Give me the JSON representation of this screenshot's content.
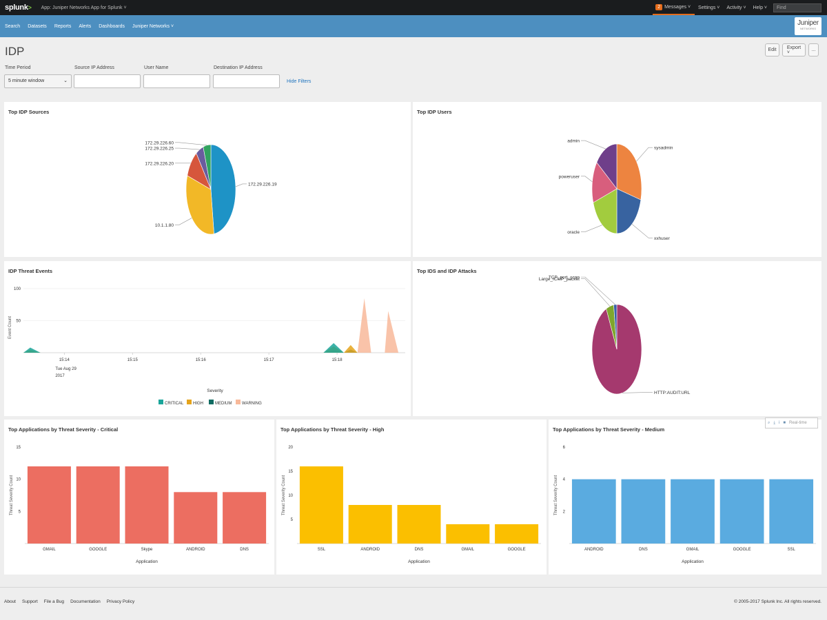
{
  "topbar": {
    "logo": "splunk",
    "logo_suffix": ">",
    "app_name": "App: Juniper Networks App for Splunk ˅",
    "message_count": "2",
    "messages": "Messages ˅",
    "settings": "Settings ˅",
    "activity": "Activity ˅",
    "help": "Help ˅",
    "find_placeholder": "Find"
  },
  "nav": {
    "items": [
      "Search",
      "Datasets",
      "Reports",
      "Alerts",
      "Dashboards",
      "Juniper Networks ˅"
    ],
    "brand_logo": "Juniper",
    "brand_sub": "NETWORKS"
  },
  "page": {
    "title": "IDP",
    "edit": "Edit",
    "export": "Export ˅",
    "more": "..."
  },
  "filters": {
    "time_period_label": "Time Period",
    "time_period_value": "5 minute window",
    "source_ip_label": "Source IP Address",
    "user_name_label": "User Name",
    "dest_ip_label": "Destination IP Address",
    "hide_filters": "Hide Filters"
  },
  "panels": {
    "top_idp_sources": {
      "title": "Top IDP Sources",
      "chart_data": {
        "type": "pie",
        "labels": [
          "172.29.226.19",
          "10.1.1.80",
          "172.29.226.20",
          "172.29.226.25",
          "172.29.226.60"
        ],
        "values": [
          48,
          32,
          10,
          5,
          5
        ],
        "colors": [
          "#1e93c6",
          "#f2b827",
          "#d6563c",
          "#6a5c9e",
          "#31a35f"
        ]
      }
    },
    "top_idp_users": {
      "title": "Top IDP Users",
      "chart_data": {
        "type": "pie",
        "labels": [
          "sysadmin",
          "xxhuser",
          "oracle",
          "poweruser",
          "admin"
        ],
        "values": [
          29,
          21,
          20,
          15,
          15
        ],
        "colors": [
          "#ed8440",
          "#3863a0",
          "#a2cc3e",
          "#d85e7d",
          "#6f3f8a"
        ]
      }
    },
    "idp_threat_events": {
      "title": "IDP Threat Events",
      "chart_data": {
        "type": "area",
        "ylabel": "Event Count",
        "xlabel": "Severity",
        "ylim": [
          0,
          100
        ],
        "yticks": [
          50,
          100
        ],
        "xticks": [
          "15:14",
          "15:15",
          "15:16",
          "15:17",
          "15:18"
        ],
        "xdate_line1": "Tue Aug 29",
        "xdate_line2": "2017",
        "x_minutes": [
          0,
          0.1,
          0.25,
          0.4,
          0.6,
          1.6,
          2.6,
          3.6,
          4.4,
          4.55,
          4.7,
          4.8,
          4.9,
          5.0,
          5.1,
          5.2,
          5.3,
          5.35,
          5.5,
          5.6
        ],
        "series": [
          {
            "name": "CRITICAL",
            "color": "#1aa59a",
            "values": [
              0,
              8,
              0,
              0,
              0,
              0,
              0,
              0,
              0,
              15,
              0,
              0,
              0,
              0,
              0,
              0,
              0,
              0,
              0,
              0
            ]
          },
          {
            "name": "HIGH",
            "color": "#e5a41c",
            "values": [
              0,
              5,
              0,
              0,
              0,
              0,
              0,
              0,
              0,
              10,
              0,
              12,
              0,
              0,
              0,
              0,
              0,
              0,
              0,
              0
            ]
          },
          {
            "name": "MEDIUM",
            "color": "#0f6b62",
            "values": [
              0,
              2,
              0,
              0,
              0,
              0,
              0,
              0,
              0,
              4,
              0,
              5,
              0,
              0,
              0,
              0,
              0,
              0,
              0,
              0
            ]
          },
          {
            "name": "WARNING",
            "color": "#f8b99a",
            "values": [
              0,
              0,
              0,
              0,
              0,
              0,
              0,
              0,
              0,
              0,
              0,
              0,
              0,
              85,
              0,
              0,
              0,
              65,
              0,
              0
            ]
          }
        ]
      }
    },
    "top_ids_idp_attacks": {
      "title": "Top IDS and IDP Attacks",
      "chart_data": {
        "type": "pie",
        "labels": [
          "HTTP:AUDIT:URL",
          "Large_ICMP_packet",
          "TCP_port_scan"
        ],
        "values": [
          93,
          5,
          2
        ],
        "colors": [
          "#a5396e",
          "#7fa62c",
          "#3a5fa8"
        ]
      }
    },
    "critical": {
      "title": "Top Applications by Threat Severity - Critical",
      "chart_data": {
        "type": "bar",
        "categories": [
          "GMAIL",
          "GOOGLE",
          "Skype",
          "ANDROID",
          "DNS"
        ],
        "values": [
          12,
          12,
          12,
          8,
          8
        ],
        "ylim": [
          0,
          15
        ],
        "yticks": [
          5,
          10,
          15
        ],
        "xlabel": "Application",
        "ylabel": "Threat Severity Count",
        "color": "#ec6e61"
      }
    },
    "high": {
      "title": "Top Applications by Threat Severity - High",
      "chart_data": {
        "type": "bar",
        "categories": [
          "SSL",
          "ANDROID",
          "DNS",
          "GMAIL",
          "GOOGLE"
        ],
        "values": [
          16,
          8,
          8,
          4,
          4
        ],
        "ylim": [
          0,
          20
        ],
        "yticks": [
          5,
          10,
          15,
          20
        ],
        "xlabel": "Application",
        "ylabel": "Threat Severity Count",
        "color": "#fbbf00"
      }
    },
    "medium": {
      "title": "Top Applications by Threat Severity - Medium",
      "chart_data": {
        "type": "bar",
        "categories": [
          "ANDROID",
          "DNS",
          "GMAIL",
          "GOOGLE",
          "SSL"
        ],
        "values": [
          4,
          4,
          4,
          4,
          4
        ],
        "ylim": [
          0,
          6
        ],
        "yticks": [
          2,
          4,
          6
        ],
        "xlabel": "Application",
        "ylabel": "Threat Severity Count",
        "color": "#5aabe0"
      }
    }
  },
  "panel_tools": {
    "search": "⌕",
    "export": "⤓",
    "info": "i",
    "open": "■",
    "realtime": "Real-time"
  },
  "footer": {
    "links": [
      "About",
      "Support",
      "File a Bug",
      "Documentation",
      "Privacy Policy"
    ],
    "copyright": "© 2005-2017 Splunk Inc. All rights reserved."
  }
}
